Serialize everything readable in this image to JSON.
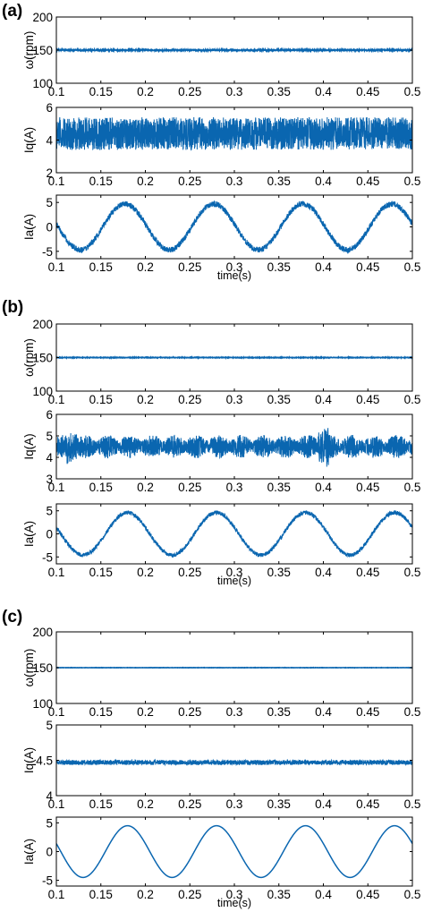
{
  "figure": {
    "panels": [
      {
        "label": "(a)",
        "chart_indices": [
          0,
          1,
          2
        ]
      },
      {
        "label": "(b)",
        "chart_indices": [
          3,
          4,
          5
        ]
      },
      {
        "label": "(c)",
        "chart_indices": [
          6,
          7,
          8
        ]
      }
    ]
  },
  "colors": {
    "signal": "#0a66b0",
    "axis": "#000000"
  },
  "chart_data": [
    {
      "panel": "(a)",
      "type": "line",
      "ylabel": "ω(rpm)",
      "xlabel": "",
      "xlim": [
        0.1,
        0.5
      ],
      "ylim": [
        100,
        200
      ],
      "xticks": [
        "0.1",
        "0.15",
        "0.2",
        "0.25",
        "0.3",
        "0.35",
        "0.4",
        "0.45",
        "0.5"
      ],
      "yticks": [
        "100",
        "150",
        "200"
      ],
      "series": [
        {
          "mean": 150,
          "ripple": 1.5,
          "style": "flat"
        }
      ]
    },
    {
      "panel": "(a)",
      "type": "line",
      "ylabel": "Iq(A)",
      "xlabel": "",
      "xlim": [
        0.1,
        0.5
      ],
      "ylim": [
        2,
        6
      ],
      "xticks": [
        "0.1",
        "0.15",
        "0.2",
        "0.25",
        "0.3",
        "0.35",
        "0.4",
        "0.45",
        "0.5"
      ],
      "yticks": [
        "2",
        "4",
        "6"
      ],
      "series": [
        {
          "mean": 4.4,
          "ripple": 1.0,
          "style": "noise"
        }
      ]
    },
    {
      "panel": "(a)",
      "type": "line",
      "ylabel": "Ia(A)",
      "xlabel": "time(s)",
      "xlim": [
        0.1,
        0.5
      ],
      "ylim": [
        -6.5,
        6.5
      ],
      "xticks": [
        "0.1",
        "0.15",
        "0.2",
        "0.25",
        "0.3",
        "0.35",
        "0.4",
        "0.45",
        "0.5"
      ],
      "yticks": [
        "-5",
        "0",
        "5"
      ],
      "series": [
        {
          "amplitude": 4.7,
          "frequency_hz": 10,
          "peak_time_s": 0.177,
          "ripple": 0.6,
          "style": "sine"
        }
      ]
    },
    {
      "panel": "(b)",
      "type": "line",
      "ylabel": "ω(rpm)",
      "xlabel": "",
      "xlim": [
        0.1,
        0.5
      ],
      "ylim": [
        100,
        200
      ],
      "xticks": [
        "0.1",
        "0.15",
        "0.2",
        "0.25",
        "0.3",
        "0.35",
        "0.4",
        "0.45",
        "0.5"
      ],
      "yticks": [
        "100",
        "150",
        "200"
      ],
      "series": [
        {
          "mean": 150,
          "ripple": 0.7,
          "style": "flat"
        }
      ]
    },
    {
      "panel": "(b)",
      "type": "line",
      "ylabel": "Iq(A)",
      "xlabel": "",
      "xlim": [
        0.1,
        0.5
      ],
      "ylim": [
        3,
        6
      ],
      "xticks": [
        "0.1",
        "0.15",
        "0.2",
        "0.25",
        "0.3",
        "0.35",
        "0.4",
        "0.45",
        "0.5"
      ],
      "yticks": [
        "3",
        "4",
        "5",
        "6"
      ],
      "series": [
        {
          "mean": 4.5,
          "ripple": 0.55,
          "style": "bursty"
        }
      ]
    },
    {
      "panel": "(b)",
      "type": "line",
      "ylabel": "Ia(A)",
      "xlabel": "time(s)",
      "xlim": [
        0.1,
        0.5
      ],
      "ylim": [
        -6.5,
        6.5
      ],
      "xticks": [
        "0.1",
        "0.15",
        "0.2",
        "0.25",
        "0.3",
        "0.35",
        "0.4",
        "0.45",
        "0.5"
      ],
      "yticks": [
        "-5",
        "0",
        "5"
      ],
      "series": [
        {
          "amplitude": 4.6,
          "frequency_hz": 10,
          "peak_time_s": 0.18,
          "ripple": 0.45,
          "style": "sine"
        }
      ]
    },
    {
      "panel": "(c)",
      "type": "line",
      "ylabel": "ω(rpm)",
      "xlabel": "",
      "xlim": [
        0.1,
        0.5
      ],
      "ylim": [
        100,
        200
      ],
      "xticks": [
        "0.1",
        "0.15",
        "0.2",
        "0.25",
        "0.3",
        "0.35",
        "0.4",
        "0.45",
        "0.5"
      ],
      "yticks": [
        "100",
        "150",
        "200"
      ],
      "series": [
        {
          "mean": 150,
          "ripple": 0.3,
          "style": "flat"
        }
      ]
    },
    {
      "panel": "(c)",
      "type": "line",
      "ylabel": "Iq(A)",
      "xlabel": "",
      "xlim": [
        0.1,
        0.5
      ],
      "ylim": [
        4,
        5
      ],
      "xticks": [
        "0.1",
        "0.15",
        "0.2",
        "0.25",
        "0.3",
        "0.35",
        "0.4",
        "0.45",
        "0.5"
      ],
      "yticks": [
        "4",
        "4.5",
        "5"
      ],
      "series": [
        {
          "mean": 4.47,
          "ripple": 0.035,
          "style": "noise"
        }
      ]
    },
    {
      "panel": "(c)",
      "type": "line",
      "ylabel": "Ia(A)",
      "xlabel": "time(s)",
      "xlim": [
        0.1,
        0.5
      ],
      "ylim": [
        -6,
        6
      ],
      "xticks": [
        "0.1",
        "0.15",
        "0.2",
        "0.25",
        "0.3",
        "0.35",
        "0.4",
        "0.45",
        "0.5"
      ],
      "yticks": [
        "-5",
        "0",
        "5"
      ],
      "series": [
        {
          "amplitude": 4.5,
          "frequency_hz": 10,
          "peak_time_s": 0.18,
          "ripple": 0.0,
          "style": "sine"
        }
      ]
    }
  ]
}
